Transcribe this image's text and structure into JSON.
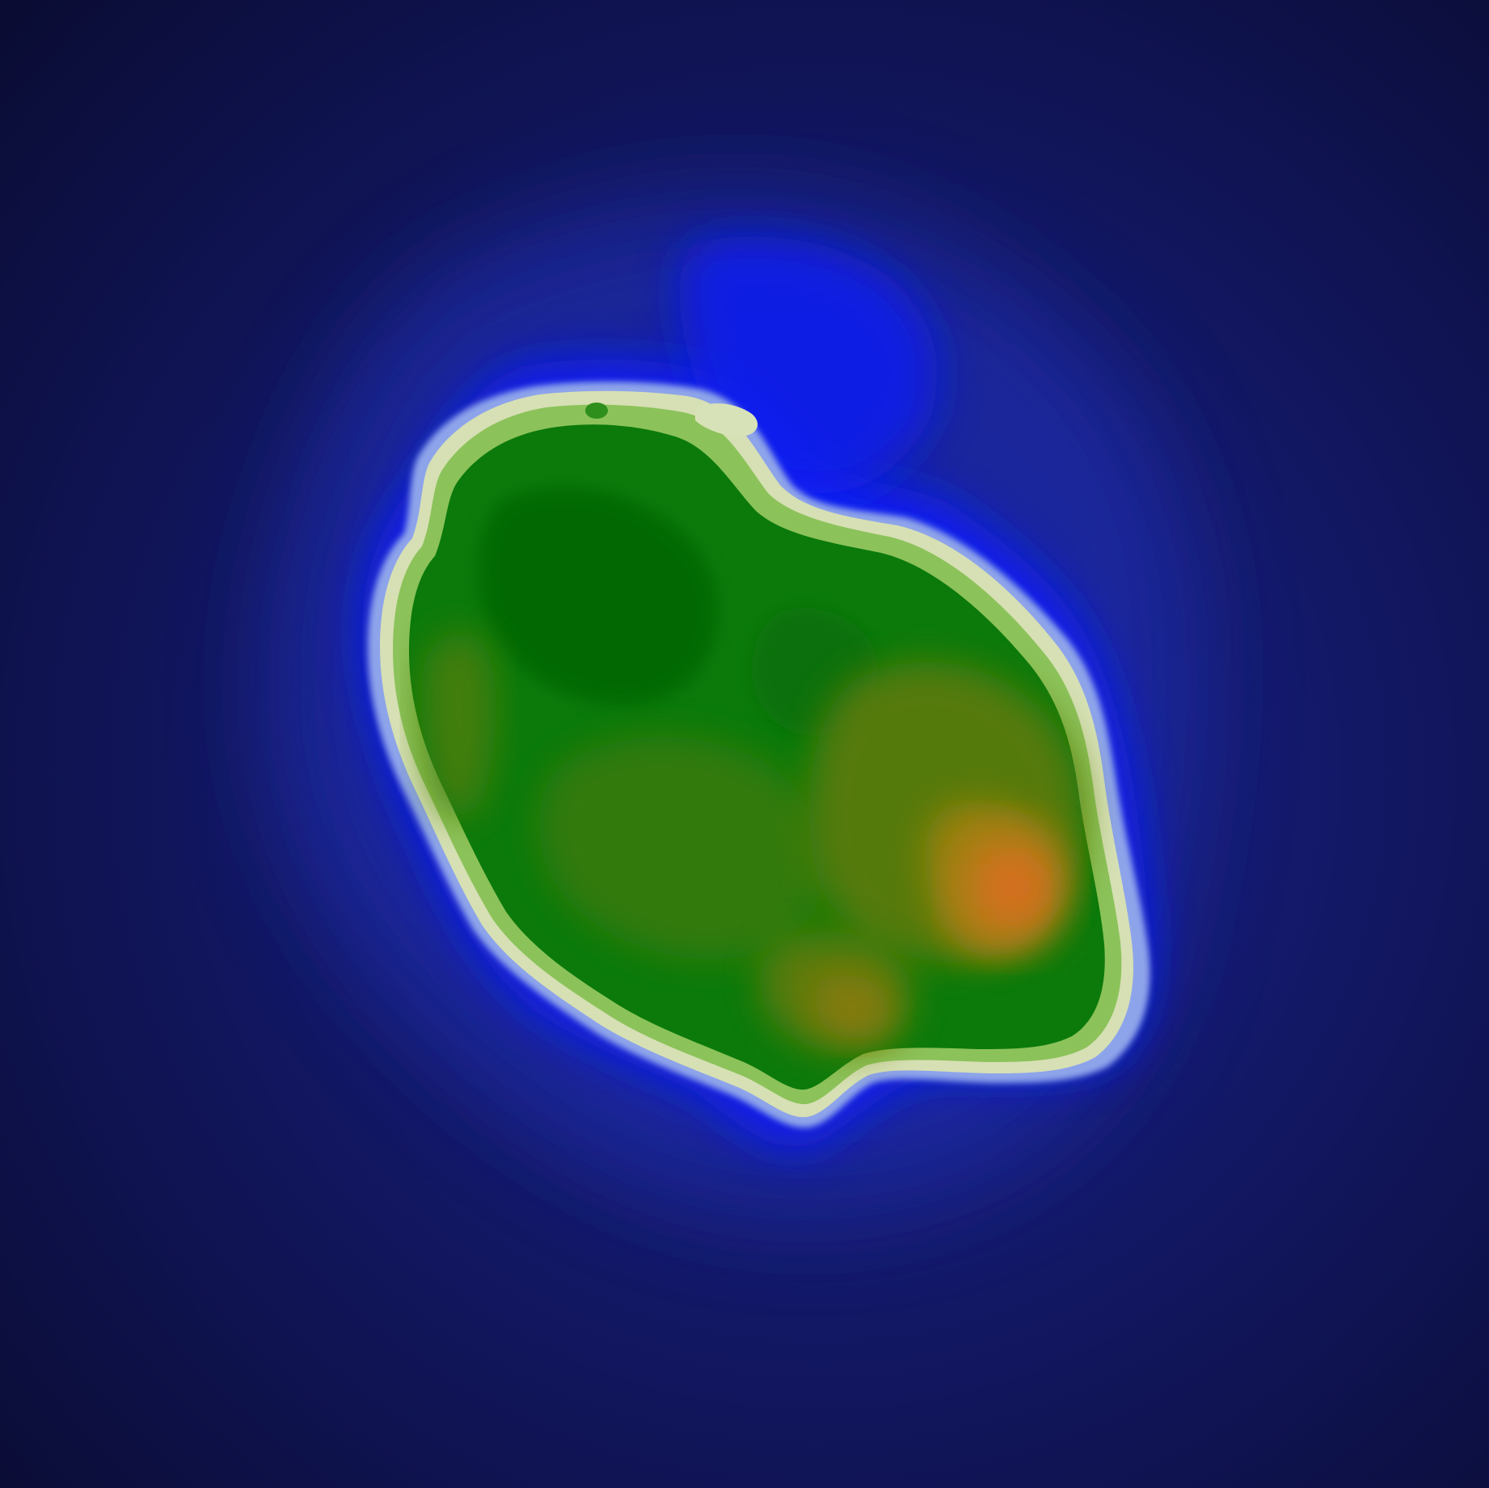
{
  "map": {
    "kind": "terrain-heightmap",
    "rendering": "filled-contour",
    "labels": [],
    "palette": {
      "deep_ocean": "#0a0c33",
      "ocean": "#14186a",
      "mid_ocean": "#1a2296",
      "shallow_glow": "#2a38c8",
      "shallow": "#0a1aff",
      "shelf": "#8aa0e8",
      "beach_light": "#d8e2b8",
      "beach": "#c4d99a",
      "lowland_light": "#7ab84a",
      "lowland": "#3d9a22",
      "forest": "#0c7a0c",
      "forest_dark": "#0a6e0a",
      "upland": "#2f7a0a",
      "upland_olive": "#4a7a0a",
      "hill": "#6e7a10",
      "hill_ochre": "#94800e",
      "peak": "#c07818",
      "peak_core": "#d07020"
    }
  }
}
